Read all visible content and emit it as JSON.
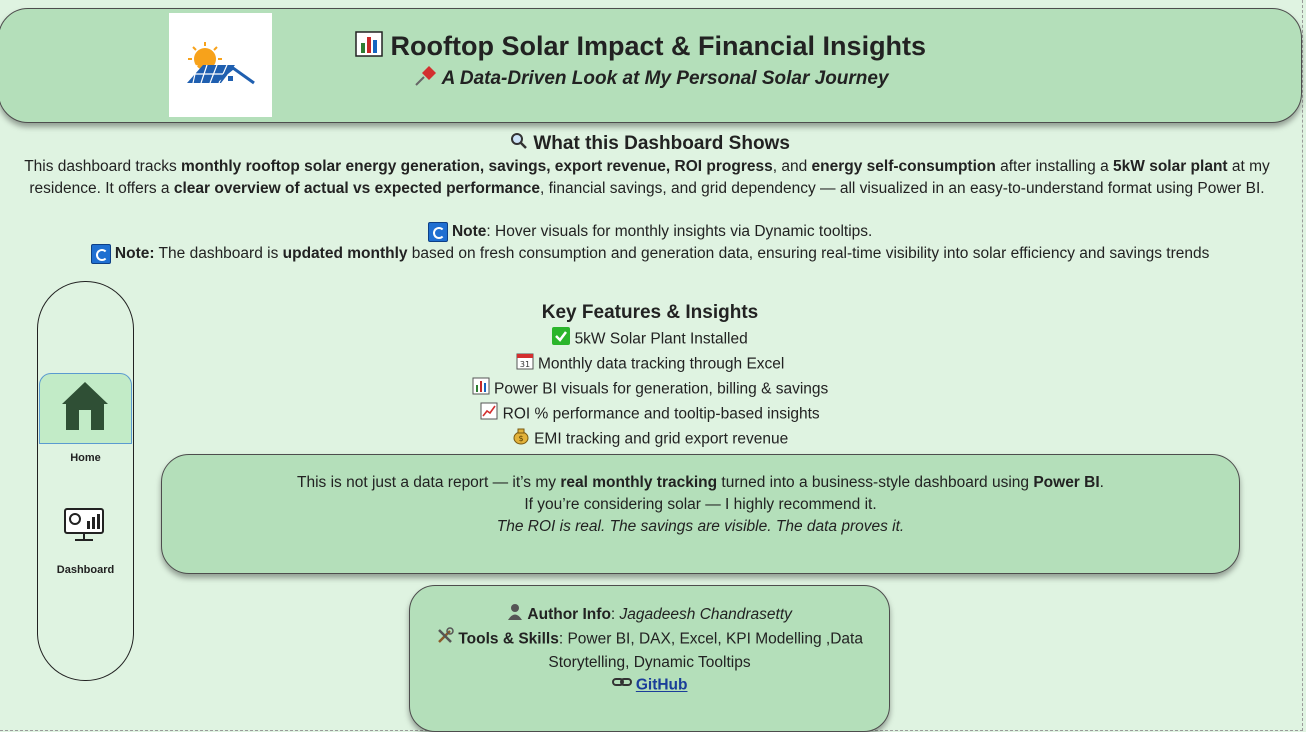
{
  "header": {
    "title": "Rooftop Solar Impact & Financial Insights",
    "subtitle": "A Data-Driven Look at My Personal Solar Journey",
    "title_icon": "bar-chart-icon",
    "subtitle_icon": "pushpin-icon",
    "logo": "solar-house-logo"
  },
  "overview": {
    "heading": "What this Dashboard Shows",
    "heading_icon": "magnifier-icon",
    "d1": "This dashboard tracks ",
    "d2": "monthly rooftop solar energy generation, savings, export revenue, ROI progress",
    "d3": ", and ",
    "d4": "energy self-consumption",
    "d5": " after installing a ",
    "d6": "5kW solar plant",
    "d7": " at my residence. It offers a ",
    "d8": "clear overview of actual vs expected performance",
    "d9": ", financial savings, and grid dependency — all visualized in an easy-to-understand format using Power BI."
  },
  "notes": {
    "n1_label": "Note",
    "n1_text": ": Hover visuals for monthly insights via Dynamic tooltips.",
    "n2_label": "Note:",
    "n2_t1": " The dashboard is ",
    "n2_bold": "updated monthly",
    "n2_t2": " based on fresh consumption and generation data, ensuring real-time visibility into solar efficiency and savings trends"
  },
  "nav": {
    "items": [
      {
        "label": "Home",
        "icon": "home-icon",
        "active": true
      },
      {
        "label": "Dashboard",
        "icon": "monitor-chart-icon",
        "active": false
      }
    ]
  },
  "features": {
    "title": "Key Features & Insights",
    "items": [
      {
        "icon": "check-mark-icon",
        "text": "5kW Solar Plant Installed"
      },
      {
        "icon": "calendar-icon",
        "text": "Monthly data tracking through Excel"
      },
      {
        "icon": "bar-chart-icon",
        "text": "Power BI visuals for generation, billing & savings"
      },
      {
        "icon": "trend-up-icon",
        "text": "ROI % performance and tooltip-based insights"
      },
      {
        "icon": "money-bag-icon",
        "text": "EMI tracking and grid export revenue"
      }
    ]
  },
  "callout": {
    "t1": "This is not just a data report — it’s my ",
    "b1": "real monthly tracking",
    "t2": " turned into a business-style dashboard using ",
    "b2": "Power BI",
    "t3": ".",
    "line2": "If you’re considering solar — I highly recommend it.",
    "line3": "The ROI is real. The savings are visible. The data proves it."
  },
  "author": {
    "label": "Author Info",
    "name": "Jagadeesh Chandrasetty",
    "tools_label": "Tools & Skills",
    "tools": ": Power BI, DAX, Excel, KPI Modelling ,Data Storytelling, Dynamic Tooltips",
    "link": "GitHub",
    "author_icon": "person-icon",
    "tools_icon": "tools-icon",
    "link_icon": "link-icon"
  },
  "colors": {
    "background": "#dff3e1",
    "panel": "#b4dfba",
    "nav_active": "#c2ebc7",
    "link": "#1a3d99"
  }
}
